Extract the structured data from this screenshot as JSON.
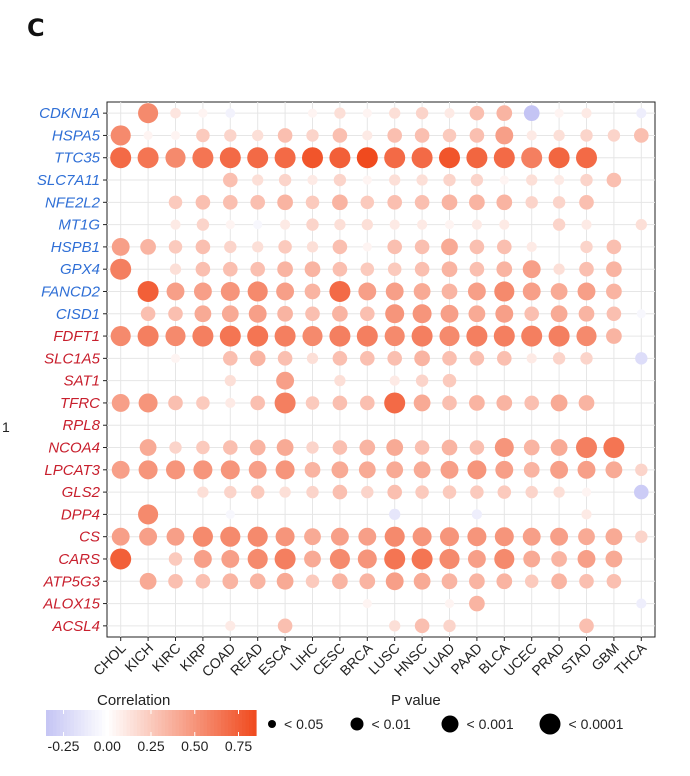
{
  "panel_label": "C",
  "side_mark": "1",
  "chart_data": {
    "type": "bubble-heatmap",
    "x_categories": [
      "CHOL",
      "KICH",
      "KIRC",
      "KIRP",
      "COAD",
      "READ",
      "ESCA",
      "LIHC",
      "CESC",
      "BRCA",
      "LUSC",
      "HNSC",
      "LUAD",
      "PAAD",
      "BLCA",
      "UCEC",
      "PRAD",
      "STAD",
      "GBM",
      "THCA"
    ],
    "genes": [
      {
        "name": "CDKN1A",
        "group": "suppressor",
        "values": [
          null,
          0.55,
          0.12,
          0.05,
          -0.08,
          null,
          null,
          0.05,
          0.15,
          0.05,
          0.15,
          0.2,
          0.1,
          0.3,
          0.35,
          -0.35,
          0.05,
          0.1,
          null,
          -0.1
        ]
      },
      {
        "name": "HSPA5",
        "group": "suppressor",
        "values": [
          0.55,
          0.05,
          0.05,
          0.25,
          0.2,
          0.15,
          0.3,
          0.2,
          0.3,
          0.1,
          0.3,
          0.3,
          0.25,
          0.3,
          0.45,
          0.1,
          0.15,
          0.2,
          0.2,
          0.3
        ]
      },
      {
        "name": "TTC35",
        "group": "suppressor",
        "values": [
          0.7,
          0.65,
          0.55,
          0.65,
          0.7,
          0.7,
          0.7,
          0.8,
          0.75,
          0.85,
          0.7,
          0.7,
          0.8,
          0.72,
          0.7,
          0.6,
          0.72,
          0.7,
          null,
          null
        ]
      },
      {
        "name": "SLC7A11",
        "group": "suppressor",
        "values": [
          null,
          null,
          null,
          null,
          0.3,
          0.15,
          0.2,
          0.1,
          0.2,
          0.05,
          0.15,
          0.15,
          0.2,
          0.2,
          0.05,
          0.15,
          0.1,
          0.2,
          0.3,
          null
        ]
      },
      {
        "name": "NFE2L2",
        "group": "suppressor",
        "values": [
          null,
          null,
          0.25,
          0.3,
          0.3,
          0.3,
          0.35,
          0.25,
          0.35,
          0.25,
          0.3,
          0.3,
          0.35,
          0.35,
          0.35,
          0.2,
          0.2,
          0.3,
          null,
          null
        ]
      },
      {
        "name": "MT1G",
        "group": "suppressor",
        "values": [
          null,
          null,
          0.1,
          0.2,
          0.05,
          -0.05,
          0.1,
          0.2,
          0.15,
          0.15,
          0.1,
          0.1,
          0.05,
          0.1,
          0.1,
          null,
          0.2,
          0.1,
          null,
          0.15
        ]
      },
      {
        "name": "HSPB1",
        "group": "suppressor",
        "values": [
          0.45,
          0.35,
          0.25,
          0.3,
          0.2,
          0.15,
          0.25,
          0.15,
          0.3,
          0.05,
          0.3,
          0.3,
          0.4,
          0.3,
          0.3,
          0.1,
          null,
          0.2,
          0.3,
          null
        ]
      },
      {
        "name": "GPX4",
        "group": "suppressor",
        "values": [
          0.6,
          null,
          0.15,
          0.3,
          0.3,
          0.3,
          0.35,
          0.35,
          0.3,
          0.25,
          0.25,
          0.3,
          0.35,
          0.3,
          0.35,
          0.45,
          0.15,
          0.3,
          0.35,
          null
        ]
      },
      {
        "name": "FANCD2",
        "group": "suppressor",
        "values": [
          null,
          0.75,
          0.45,
          0.45,
          0.5,
          0.55,
          0.45,
          0.35,
          0.7,
          0.45,
          0.45,
          0.4,
          0.35,
          0.45,
          0.55,
          0.45,
          0.4,
          0.45,
          0.35,
          null
        ]
      },
      {
        "name": "CISD1",
        "group": "suppressor",
        "values": [
          null,
          0.3,
          0.3,
          0.4,
          0.4,
          0.45,
          0.35,
          0.3,
          0.35,
          0.3,
          0.5,
          0.5,
          0.45,
          0.4,
          0.45,
          0.3,
          0.4,
          0.35,
          0.3,
          -0.05
        ]
      },
      {
        "name": "FDFT1",
        "group": "driver",
        "values": [
          0.55,
          0.6,
          0.55,
          0.6,
          0.65,
          0.65,
          0.6,
          0.55,
          0.6,
          0.6,
          0.55,
          0.6,
          0.55,
          0.6,
          0.6,
          0.6,
          0.6,
          0.55,
          0.35,
          null
        ]
      },
      {
        "name": "SLC1A5",
        "group": "driver",
        "values": [
          null,
          null,
          0.05,
          null,
          0.3,
          0.35,
          0.3,
          0.15,
          0.3,
          0.3,
          0.3,
          0.35,
          0.3,
          0.3,
          0.3,
          0.1,
          0.2,
          0.2,
          null,
          -0.2
        ]
      },
      {
        "name": "SAT1",
        "group": "driver",
        "values": [
          null,
          null,
          null,
          null,
          0.15,
          null,
          0.45,
          null,
          0.15,
          null,
          0.1,
          0.2,
          0.25,
          null,
          null,
          null,
          null,
          null,
          null,
          null
        ]
      },
      {
        "name": "TFRC",
        "group": "driver",
        "values": [
          0.45,
          0.5,
          0.3,
          0.25,
          0.1,
          0.3,
          0.6,
          0.25,
          0.3,
          0.3,
          0.7,
          0.4,
          0.3,
          0.35,
          0.35,
          0.3,
          0.4,
          0.35,
          null,
          null
        ]
      },
      {
        "name": "RPL8",
        "group": "driver",
        "values": [
          null,
          null,
          null,
          null,
          null,
          null,
          null,
          null,
          null,
          null,
          null,
          null,
          null,
          null,
          null,
          null,
          null,
          null,
          null,
          null
        ]
      },
      {
        "name": "NCOA4",
        "group": "driver",
        "values": [
          null,
          0.4,
          0.2,
          0.25,
          0.3,
          0.35,
          0.4,
          0.2,
          0.3,
          0.35,
          0.4,
          0.3,
          0.35,
          0.3,
          0.5,
          0.35,
          0.4,
          0.6,
          0.65,
          null
        ]
      },
      {
        "name": "LPCAT3",
        "group": "driver",
        "values": [
          0.45,
          0.5,
          0.5,
          0.5,
          0.5,
          0.45,
          0.5,
          0.35,
          0.4,
          0.4,
          0.4,
          0.4,
          0.45,
          0.5,
          0.45,
          0.35,
          0.45,
          0.45,
          0.4,
          0.2
        ]
      },
      {
        "name": "GLS2",
        "group": "driver",
        "values": [
          null,
          null,
          null,
          0.15,
          0.2,
          0.25,
          0.15,
          0.2,
          0.3,
          0.2,
          0.3,
          0.25,
          0.25,
          0.25,
          0.25,
          0.2,
          0.15,
          0.05,
          null,
          -0.3
        ]
      },
      {
        "name": "DPP4",
        "group": "driver",
        "values": [
          null,
          0.55,
          null,
          null,
          -0.05,
          null,
          null,
          null,
          null,
          null,
          -0.15,
          null,
          null,
          -0.1,
          null,
          null,
          null,
          0.1,
          null,
          null
        ]
      },
      {
        "name": "CS",
        "group": "driver",
        "values": [
          0.45,
          0.45,
          0.45,
          0.55,
          0.55,
          0.55,
          0.5,
          0.4,
          0.45,
          0.45,
          0.55,
          0.5,
          0.5,
          0.5,
          0.5,
          0.45,
          0.45,
          0.4,
          0.4,
          0.2
        ]
      },
      {
        "name": "CARS",
        "group": "driver",
        "values": [
          0.75,
          null,
          0.25,
          0.45,
          0.45,
          0.55,
          0.6,
          0.4,
          0.55,
          0.5,
          0.65,
          0.65,
          0.55,
          0.45,
          0.55,
          0.4,
          0.35,
          0.45,
          0.4,
          null
        ]
      },
      {
        "name": "ATP5G3",
        "group": "driver",
        "values": [
          null,
          0.4,
          0.3,
          0.3,
          0.35,
          0.35,
          0.4,
          0.25,
          0.35,
          0.35,
          0.45,
          0.4,
          0.35,
          0.35,
          0.35,
          0.25,
          0.35,
          0.3,
          0.3,
          null
        ]
      },
      {
        "name": "ALOX15",
        "group": "driver",
        "values": [
          null,
          null,
          null,
          null,
          null,
          null,
          null,
          null,
          null,
          0.05,
          null,
          null,
          0.05,
          0.35,
          null,
          null,
          null,
          null,
          null,
          -0.1
        ]
      },
      {
        "name": "ACSL4",
        "group": "driver",
        "values": [
          null,
          null,
          null,
          null,
          0.1,
          null,
          0.3,
          null,
          null,
          null,
          0.15,
          0.3,
          0.2,
          null,
          null,
          null,
          null,
          0.3,
          null,
          null
        ]
      }
    ],
    "colorbar": {
      "title": "Correlation",
      "ticks": [
        "-0.25",
        "0.00",
        "0.25",
        "0.50",
        "0.75"
      ],
      "range": [
        -0.35,
        0.85
      ],
      "low_color": "#c4c4f4",
      "mid_color": "#ffffff",
      "high_color": "#f04a1e"
    },
    "size_legend": {
      "title": "P value",
      "items": [
        "< 0.05",
        "< 0.01",
        "< 0.001",
        "< 0.0001"
      ]
    },
    "label_colors": {
      "suppressor": "#2f6fd6",
      "driver": "#c81f2d"
    },
    "grid": true
  }
}
